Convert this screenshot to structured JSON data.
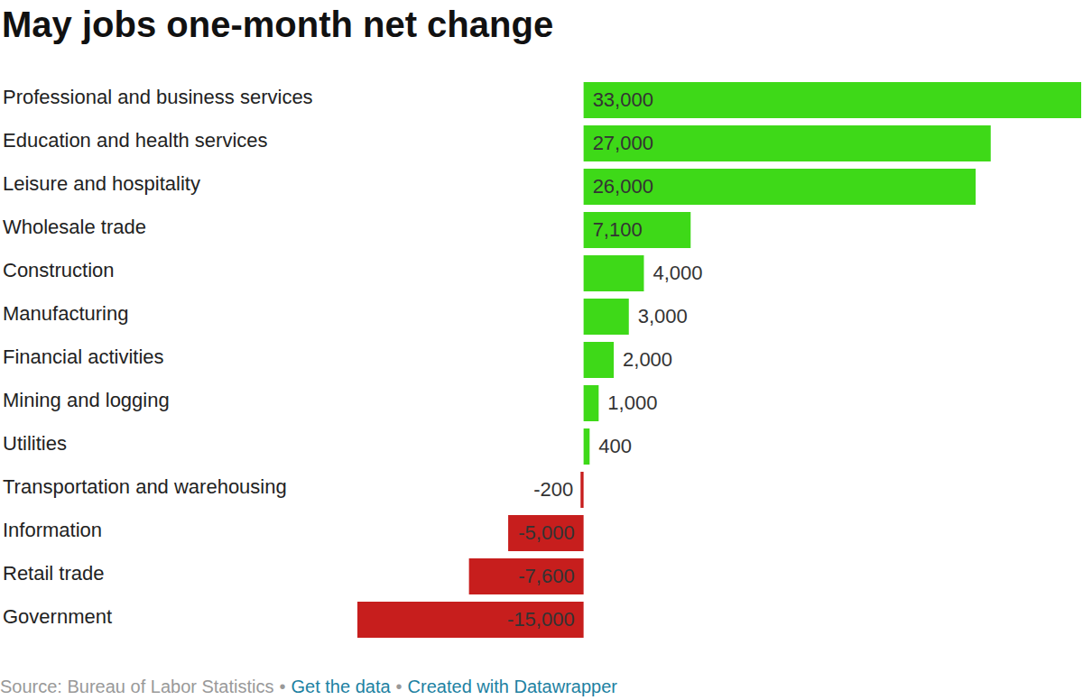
{
  "chart_data": {
    "type": "bar",
    "orientation": "horizontal",
    "title": "May jobs one-month net change",
    "categories": [
      "Professional and business services",
      "Education and health services",
      "Leisure and hospitality",
      "Wholesale trade",
      "Construction",
      "Manufacturing",
      "Financial activities",
      "Mining and logging",
      "Utilities",
      "Transportation and warehousing",
      "Information",
      "Retail trade",
      "Government"
    ],
    "values": [
      33000,
      27000,
      26000,
      7100,
      4000,
      3000,
      2000,
      1000,
      400,
      -200,
      -5000,
      -7600,
      -15000
    ],
    "value_labels": [
      "33,000",
      "27,000",
      "26,000",
      "7,100",
      "4,000",
      "3,000",
      "2,000",
      "1,000",
      "400",
      "-200",
      "-5,000",
      "-7,600",
      "-15,000"
    ],
    "colors": [
      "#3ed918",
      "#3ed918",
      "#3ed918",
      "#3ed918",
      "#3ed918",
      "#3ed918",
      "#3ed918",
      "#3ed918",
      "#3ed918",
      "#c71e1d",
      "#c71e1d",
      "#c71e1d",
      "#c71e1d"
    ],
    "xlim": [
      -15000,
      33000
    ],
    "data_labels": true,
    "tick_labels": "y",
    "grid": false,
    "footer": [
      "Source: Bureau of Labor Statistics",
      "•",
      "Get the data",
      "•",
      "Created with Datawrapper"
    ]
  }
}
